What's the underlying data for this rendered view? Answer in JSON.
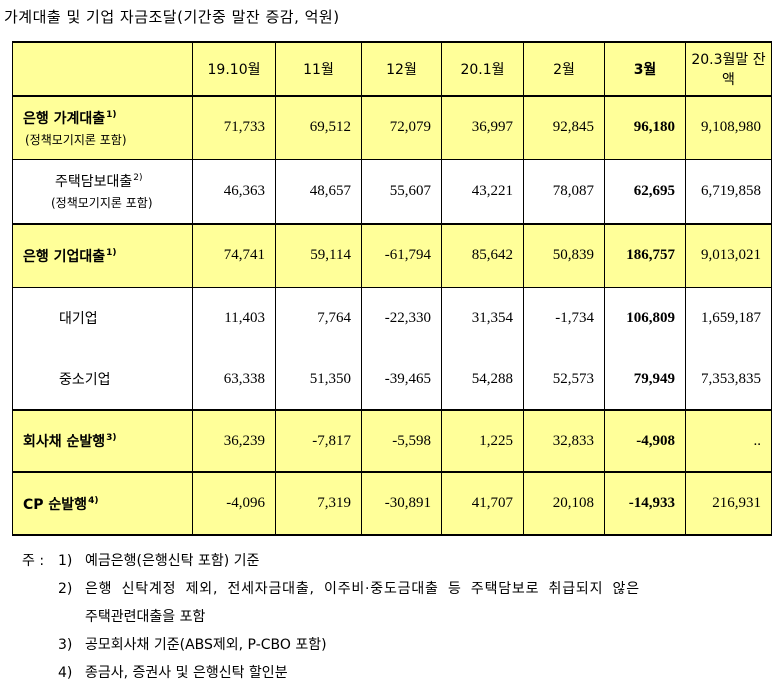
{
  "title": "가계대출 및 기업 자금조달(기간중 말잔 증감, 억원)",
  "headers": [
    "",
    "19.10월",
    "11월",
    "12월",
    "20.1월",
    "2월",
    "3월",
    "20.3월말 잔액"
  ],
  "rows": [
    {
      "label": "은행 가계대출",
      "sup": "1)",
      "sub": "(정책모기지론 포함)",
      "values": [
        "71,733",
        "69,512",
        "72,079",
        "36,997",
        "92,845",
        "96,180",
        "9,108,980"
      ]
    },
    {
      "label": "주택담보대출",
      "sup": "2)",
      "sub": "(정책모기지론 포함)",
      "values": [
        "46,363",
        "48,657",
        "55,607",
        "43,221",
        "78,087",
        "62,695",
        "6,719,858"
      ]
    },
    {
      "label": "은행 기업대출",
      "sup": "1)",
      "values": [
        "74,741",
        "59,114",
        "-61,794",
        "85,642",
        "50,839",
        "186,757",
        "9,013,021"
      ]
    },
    {
      "label": "대기업",
      "values": [
        "11,403",
        "7,764",
        "-22,330",
        "31,354",
        "-1,734",
        "106,809",
        "1,659,187"
      ]
    },
    {
      "label": "중소기업",
      "values": [
        "63,338",
        "51,350",
        "-39,465",
        "54,288",
        "52,573",
        "79,949",
        "7,353,835"
      ]
    },
    {
      "label": "회사채 순발행",
      "sup": "3)",
      "values": [
        "36,239",
        "-7,817",
        "-5,598",
        "1,225",
        "32,833",
        "-4,908",
        ".."
      ]
    },
    {
      "label": "CP 순발행",
      "sup": "4)",
      "values": [
        "-4,096",
        "7,319",
        "-30,891",
        "41,707",
        "20,108",
        "-14,933",
        "216,931"
      ]
    }
  ],
  "notes": {
    "prefix": "주 :",
    "items": [
      {
        "num": "1)",
        "text": "예금은행(은행신탁 포함) 기준"
      },
      {
        "num": "2)",
        "text": "은행 신탁계정 제외, 전세자금대출, 이주비·중도금대출 등 주택담보로 취급되지 않은",
        "cont": "주택관련대출을 포함"
      },
      {
        "num": "3)",
        "text": "공모회사채 기준(ABS제외, P-CBO 포함)"
      },
      {
        "num": "4)",
        "text": "종금사, 증권사 및 은행신탁 할인분"
      }
    ]
  },
  "colors": {
    "highlight": "#ffff99",
    "border": "#000000"
  }
}
